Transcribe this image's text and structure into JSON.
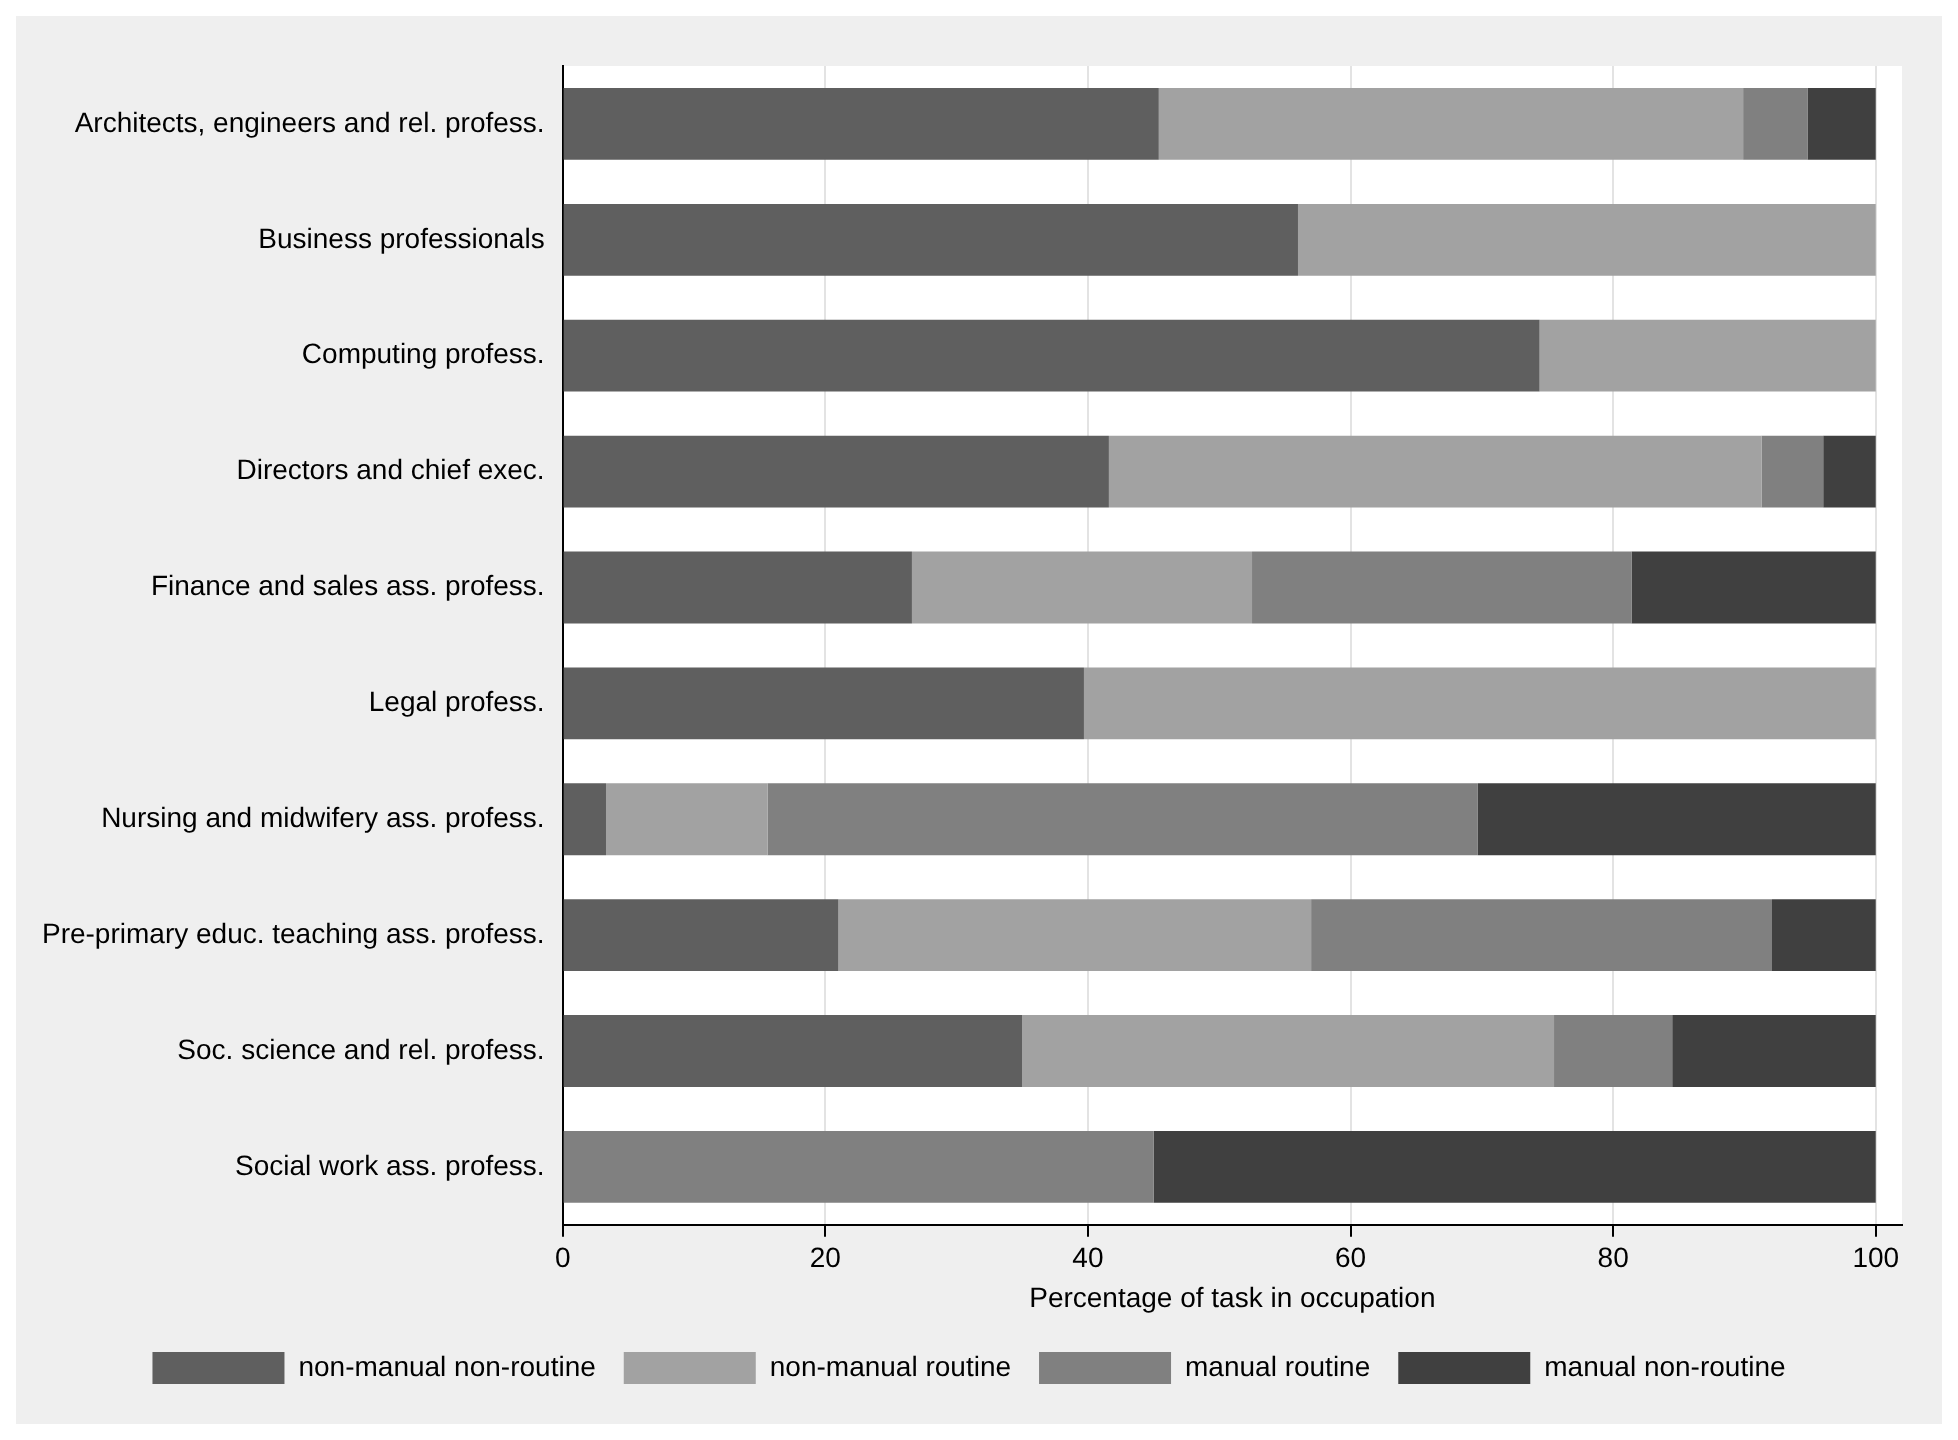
{
  "chart_data": {
    "type": "bar",
    "orientation": "horizontal",
    "stacked": true,
    "xlabel": "Percentage of task in occupation",
    "categories": [
      "Architects, engineers and rel. profess.",
      "Business professionals",
      "Computing profess.",
      "Directors and chief exec.",
      "Finance and sales ass. profess.",
      "Legal profess.",
      "Nursing and midwifery ass. profess.",
      "Pre-primary educ. teaching ass. profess.",
      "Soc. science and rel. profess.",
      "Social work ass. profess."
    ],
    "series": [
      {
        "name": "non-manual non-routine",
        "color": "#5f5f5f",
        "values": [
          45.4,
          56,
          74.4,
          41.6,
          26.6,
          39.7,
          3.3,
          21,
          35,
          0
        ]
      },
      {
        "name": "non-manual routine",
        "color": "#a2a2a2",
        "values": [
          44.5,
          44,
          25.6,
          49.7,
          25.9,
          60.3,
          12.3,
          36,
          40.5,
          0
        ]
      },
      {
        "name": "manual routine",
        "color": "#808080",
        "values": [
          4.9,
          0,
          0,
          4.7,
          28.9,
          0,
          54.1,
          35.1,
          9,
          45
        ]
      },
      {
        "name": "manual non-routine",
        "color": "#404040",
        "values": [
          5.2,
          0,
          0,
          4,
          18.6,
          0,
          30.3,
          7.9,
          15.5,
          55
        ]
      }
    ],
    "xlim": [
      0,
      102
    ],
    "xticks": [
      0,
      20,
      40,
      60,
      80,
      100
    ],
    "grid": "x",
    "legend": "bottom"
  }
}
